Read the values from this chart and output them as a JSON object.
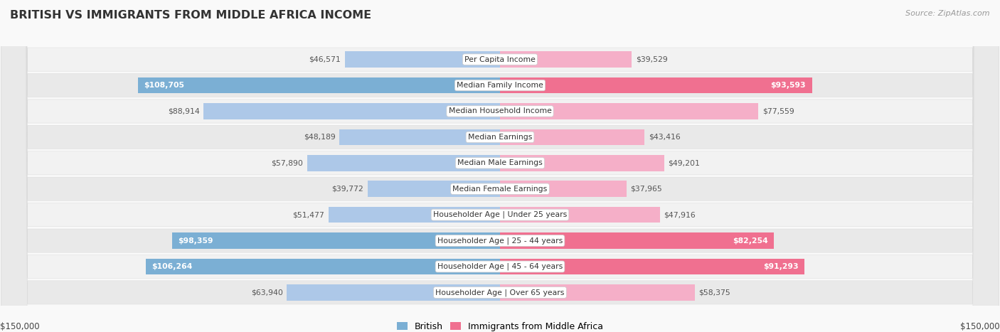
{
  "title": "BRITISH VS IMMIGRANTS FROM MIDDLE AFRICA INCOME",
  "source": "Source: ZipAtlas.com",
  "categories": [
    "Per Capita Income",
    "Median Family Income",
    "Median Household Income",
    "Median Earnings",
    "Median Male Earnings",
    "Median Female Earnings",
    "Householder Age | Under 25 years",
    "Householder Age | 25 - 44 years",
    "Householder Age | 45 - 64 years",
    "Householder Age | Over 65 years"
  ],
  "british_values": [
    46571,
    108705,
    88914,
    48189,
    57890,
    39772,
    51477,
    98359,
    106264,
    63940
  ],
  "immigrant_values": [
    39529,
    93593,
    77559,
    43416,
    49201,
    37965,
    47916,
    82254,
    91293,
    58375
  ],
  "british_labels": [
    "$46,571",
    "$108,705",
    "$88,914",
    "$48,189",
    "$57,890",
    "$39,772",
    "$51,477",
    "$98,359",
    "$106,264",
    "$63,940"
  ],
  "immigrant_labels": [
    "$39,529",
    "$93,593",
    "$77,559",
    "$43,416",
    "$49,201",
    "$37,965",
    "$47,916",
    "$82,254",
    "$91,293",
    "$58,375"
  ],
  "max_value": 150000,
  "british_color_normal": "#adc8e8",
  "british_color_highlight": "#7bafd4",
  "immigrant_color_normal": "#f5afc8",
  "immigrant_color_highlight": "#f07090",
  "highlight_rows": [
    1,
    7,
    8
  ],
  "row_bg_even": "#f0f0f0",
  "row_bg_odd": "#e8e8e8",
  "fig_bg": "#f9f9f9",
  "legend_british_color": "#7bafd4",
  "legend_immigrant_color": "#f07090",
  "xlabel_left": "$150,000",
  "xlabel_right": "$150,000",
  "title_color": "#333333",
  "source_color": "#999999",
  "label_color_dark": "#555555",
  "label_color_white": "#ffffff"
}
